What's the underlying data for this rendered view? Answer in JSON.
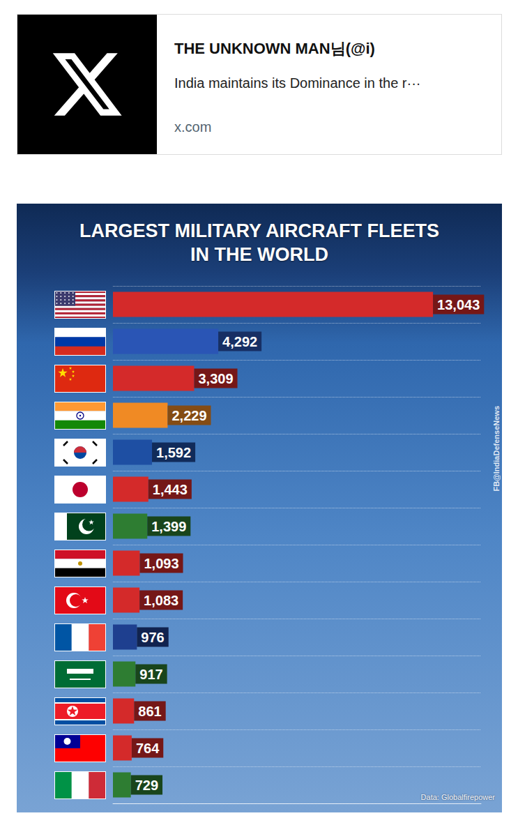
{
  "link_card": {
    "author": "THE UNKNOWN MAN님(@i)",
    "text": "India maintains its Dominance in the r···",
    "domain": "x.com"
  },
  "chart_data": {
    "type": "bar",
    "title": "LARGEST MILITARY AIRCRAFT FLEETS IN THE WORLD",
    "orientation": "horizontal",
    "categories": [
      null,
      null,
      null,
      null,
      null,
      null,
      null,
      null,
      null,
      null,
      null,
      null,
      null,
      null
    ],
    "values": [
      13043,
      4292,
      3309,
      2229,
      1592,
      1443,
      1399,
      1093,
      1083,
      976,
      917,
      861,
      764,
      729
    ],
    "value_labels": [
      "13,043",
      "4,292",
      "3,309",
      "2,229",
      "1,592",
      "1,443",
      "1,399",
      "1,093",
      "1,083",
      "976",
      "917",
      "861",
      "764",
      "729"
    ],
    "colors": [
      "#d42a2a",
      "#2a55b5",
      "#d42a2a",
      "#f08a24",
      "#1e4fa3",
      "#d42a2a",
      "#2e7d32",
      "#d42a2a",
      "#d42a2a",
      "#1e3f8f",
      "#2e7d32",
      "#d42a2a",
      "#d42a2a",
      "#2e7d32"
    ],
    "xlim": [
      0,
      15000
    ],
    "data_labels": true,
    "tick_labels": false,
    "grid": false,
    "annotations": [
      "FB@IndiaDefenseNews",
      "Data: Globalfirepower"
    ]
  }
}
